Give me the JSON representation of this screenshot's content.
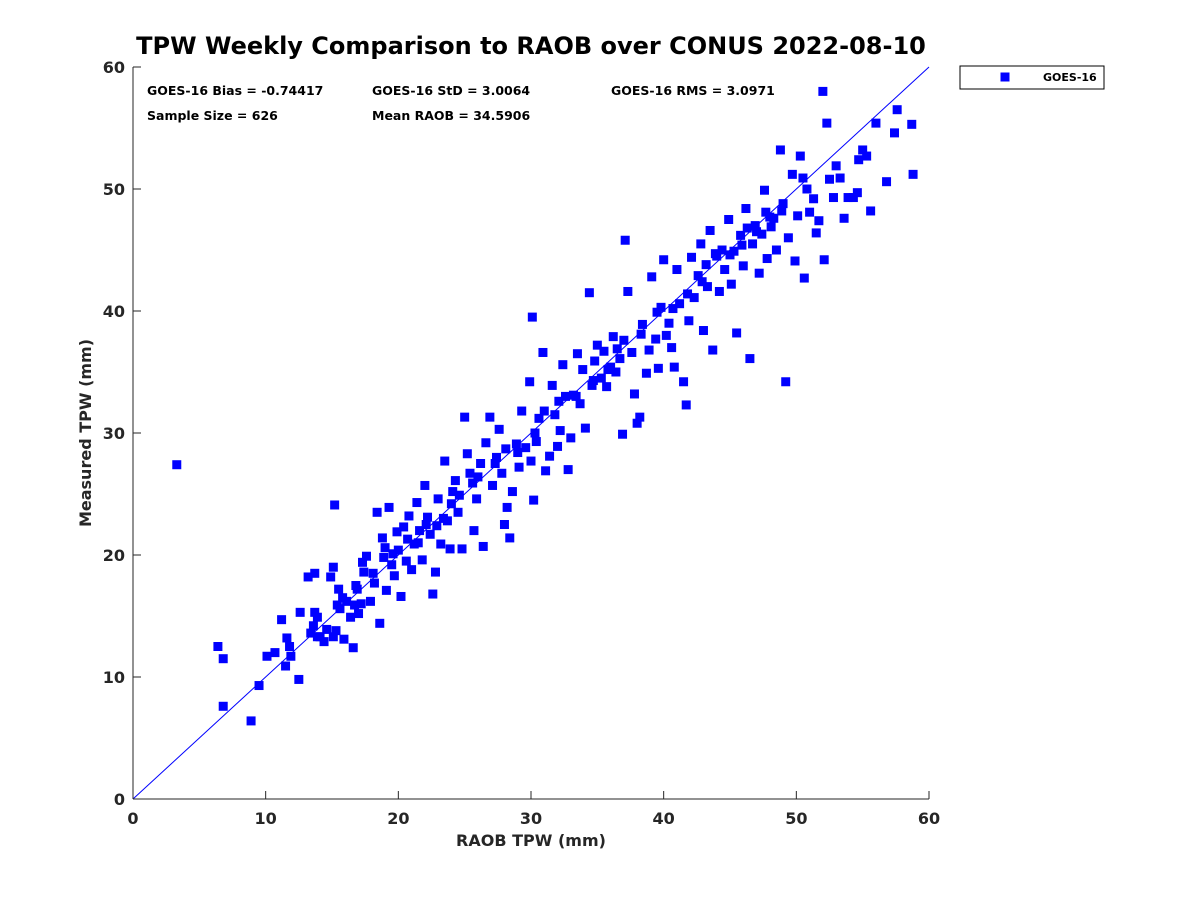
{
  "chart_data": {
    "type": "scatter",
    "title": "TPW Weekly Comparison to RAOB over CONUS 2022-08-10",
    "xlabel": "RAOB TPW (mm)",
    "ylabel": "Measured TPW (mm)",
    "xlim": [
      0,
      60
    ],
    "ylim": [
      0,
      60
    ],
    "xticks": [
      "0",
      "10",
      "20",
      "30",
      "40",
      "50",
      "60"
    ],
    "yticks": [
      "0",
      "10",
      "20",
      "30",
      "40",
      "50",
      "60"
    ],
    "grid": false,
    "legend_position": "outside top-right",
    "reference_line": {
      "name": "1:1 line",
      "from": [
        0,
        0
      ],
      "to": [
        60,
        60
      ],
      "color": "#0000ff"
    },
    "stats": {
      "bias": "GOES-16 Bias = -0.74417",
      "std": "GOES-16 StD = 3.0064",
      "rms": "GOES-16 RMS = 3.0971",
      "sample_size": "Sample Size = 626",
      "mean_raob": "Mean RAOB = 34.5906"
    },
    "series": [
      {
        "name": "GOES-16",
        "color": "#0000ff",
        "marker": "square",
        "points": [
          [
            3.3,
            27.4
          ],
          [
            6.4,
            12.5
          ],
          [
            6.8,
            11.5
          ],
          [
            6.8,
            7.6
          ],
          [
            8.9,
            6.4
          ],
          [
            9.5,
            9.3
          ],
          [
            10.1,
            11.7
          ],
          [
            10.7,
            12.0
          ],
          [
            11.2,
            14.7
          ],
          [
            11.5,
            10.9
          ],
          [
            11.8,
            12.5
          ],
          [
            11.6,
            13.2
          ],
          [
            11.9,
            11.7
          ],
          [
            12.5,
            9.8
          ],
          [
            12.6,
            15.3
          ],
          [
            13.2,
            18.2
          ],
          [
            13.4,
            13.6
          ],
          [
            13.6,
            14.2
          ],
          [
            13.7,
            15.3
          ],
          [
            13.7,
            18.5
          ],
          [
            13.9,
            14.9
          ],
          [
            14.1,
            13.3
          ],
          [
            14.4,
            12.9
          ],
          [
            14.6,
            13.9
          ],
          [
            14.9,
            18.2
          ],
          [
            15.1,
            13.3
          ],
          [
            15.1,
            19.0
          ],
          [
            15.2,
            24.1
          ],
          [
            15.3,
            13.8
          ],
          [
            15.5,
            17.2
          ],
          [
            15.6,
            15.6
          ],
          [
            15.8,
            16.5
          ],
          [
            15.9,
            13.1
          ],
          [
            16.1,
            16.2
          ],
          [
            16.4,
            14.9
          ],
          [
            16.6,
            12.4
          ],
          [
            16.7,
            15.9
          ],
          [
            16.8,
            17.5
          ],
          [
            17.0,
            15.2
          ],
          [
            17.2,
            16.0
          ],
          [
            17.4,
            18.6
          ],
          [
            17.6,
            19.9
          ],
          [
            17.9,
            16.2
          ],
          [
            18.2,
            17.7
          ],
          [
            18.4,
            23.5
          ],
          [
            18.6,
            14.4
          ],
          [
            18.8,
            21.4
          ],
          [
            19.0,
            20.6
          ],
          [
            19.1,
            17.1
          ],
          [
            19.3,
            23.9
          ],
          [
            19.5,
            19.2
          ],
          [
            19.7,
            18.3
          ],
          [
            19.9,
            21.9
          ],
          [
            20.0,
            20.4
          ],
          [
            20.2,
            16.6
          ],
          [
            20.4,
            22.3
          ],
          [
            20.6,
            19.5
          ],
          [
            20.8,
            23.2
          ],
          [
            21.0,
            18.8
          ],
          [
            21.2,
            20.9
          ],
          [
            21.4,
            24.3
          ],
          [
            21.6,
            22.0
          ],
          [
            21.8,
            19.6
          ],
          [
            22.0,
            25.7
          ],
          [
            22.2,
            23.1
          ],
          [
            22.4,
            21.7
          ],
          [
            22.6,
            16.8
          ],
          [
            22.8,
            18.6
          ],
          [
            23.0,
            24.6
          ],
          [
            23.2,
            20.9
          ],
          [
            23.5,
            27.7
          ],
          [
            23.7,
            22.8
          ],
          [
            23.9,
            20.5
          ],
          [
            24.1,
            25.2
          ],
          [
            24.3,
            26.1
          ],
          [
            24.5,
            23.5
          ],
          [
            24.8,
            20.5
          ],
          [
            25.0,
            31.3
          ],
          [
            25.2,
            28.3
          ],
          [
            25.4,
            26.7
          ],
          [
            25.7,
            22.0
          ],
          [
            25.9,
            24.6
          ],
          [
            26.2,
            27.5
          ],
          [
            26.4,
            20.7
          ],
          [
            26.6,
            29.2
          ],
          [
            26.9,
            31.3
          ],
          [
            27.1,
            25.7
          ],
          [
            27.4,
            28.0
          ],
          [
            27.6,
            30.3
          ],
          [
            27.8,
            26.7
          ],
          [
            28.0,
            22.5
          ],
          [
            28.2,
            23.9
          ],
          [
            28.4,
            21.4
          ],
          [
            28.6,
            25.2
          ],
          [
            28.9,
            29.1
          ],
          [
            29.1,
            27.2
          ],
          [
            29.3,
            31.8
          ],
          [
            29.6,
            28.8
          ],
          [
            29.9,
            34.2
          ],
          [
            30.0,
            27.7
          ],
          [
            30.1,
            39.5
          ],
          [
            30.2,
            24.5
          ],
          [
            30.4,
            29.3
          ],
          [
            30.6,
            31.2
          ],
          [
            30.9,
            36.6
          ],
          [
            31.1,
            26.9
          ],
          [
            31.4,
            28.1
          ],
          [
            31.6,
            33.9
          ],
          [
            31.8,
            31.5
          ],
          [
            32.0,
            28.9
          ],
          [
            32.2,
            30.2
          ],
          [
            32.4,
            35.6
          ],
          [
            32.6,
            33.0
          ],
          [
            32.8,
            27.0
          ],
          [
            33.0,
            29.6
          ],
          [
            33.2,
            33.1
          ],
          [
            33.5,
            36.5
          ],
          [
            33.7,
            32.4
          ],
          [
            33.9,
            35.2
          ],
          [
            34.1,
            30.4
          ],
          [
            34.4,
            41.5
          ],
          [
            34.6,
            33.9
          ],
          [
            34.8,
            35.9
          ],
          [
            35.0,
            37.2
          ],
          [
            35.3,
            34.5
          ],
          [
            35.5,
            36.7
          ],
          [
            35.7,
            33.8
          ],
          [
            36.0,
            35.4
          ],
          [
            36.2,
            37.9
          ],
          [
            36.4,
            35.0
          ],
          [
            36.7,
            36.1
          ],
          [
            36.9,
            29.9
          ],
          [
            37.1,
            45.8
          ],
          [
            37.3,
            41.6
          ],
          [
            37.6,
            36.6
          ],
          [
            37.8,
            33.2
          ],
          [
            38.0,
            30.8
          ],
          [
            38.2,
            31.3
          ],
          [
            38.4,
            38.9
          ],
          [
            38.7,
            34.9
          ],
          [
            38.9,
            36.8
          ],
          [
            39.1,
            42.8
          ],
          [
            39.4,
            37.7
          ],
          [
            39.6,
            35.3
          ],
          [
            39.8,
            40.3
          ],
          [
            40.0,
            44.2
          ],
          [
            40.2,
            38.0
          ],
          [
            40.4,
            39.0
          ],
          [
            40.6,
            37.0
          ],
          [
            40.8,
            35.4
          ],
          [
            41.0,
            43.4
          ],
          [
            41.2,
            40.6
          ],
          [
            41.5,
            34.2
          ],
          [
            41.7,
            32.3
          ],
          [
            41.9,
            39.2
          ],
          [
            42.1,
            44.4
          ],
          [
            42.3,
            41.1
          ],
          [
            42.6,
            42.9
          ],
          [
            42.8,
            45.5
          ],
          [
            43.0,
            38.4
          ],
          [
            43.3,
            42.0
          ],
          [
            43.5,
            46.6
          ],
          [
            43.7,
            36.8
          ],
          [
            43.9,
            44.7
          ],
          [
            44.2,
            41.6
          ],
          [
            44.4,
            45.0
          ],
          [
            44.6,
            43.4
          ],
          [
            44.9,
            47.5
          ],
          [
            45.1,
            42.2
          ],
          [
            45.3,
            44.9
          ],
          [
            45.5,
            38.2
          ],
          [
            45.8,
            46.2
          ],
          [
            46.0,
            43.7
          ],
          [
            46.2,
            48.4
          ],
          [
            46.5,
            36.1
          ],
          [
            46.7,
            45.5
          ],
          [
            46.9,
            47.0
          ],
          [
            47.2,
            43.1
          ],
          [
            47.4,
            46.3
          ],
          [
            47.6,
            49.9
          ],
          [
            47.8,
            44.3
          ],
          [
            48.1,
            46.9
          ],
          [
            48.3,
            47.6
          ],
          [
            48.5,
            45.0
          ],
          [
            48.8,
            53.2
          ],
          [
            49.0,
            48.8
          ],
          [
            49.2,
            34.2
          ],
          [
            49.4,
            46.0
          ],
          [
            49.7,
            51.2
          ],
          [
            49.9,
            44.1
          ],
          [
            50.1,
            47.8
          ],
          [
            50.3,
            52.7
          ],
          [
            50.6,
            42.7
          ],
          [
            50.8,
            50.0
          ],
          [
            51.0,
            48.1
          ],
          [
            51.3,
            49.2
          ],
          [
            51.5,
            46.4
          ],
          [
            51.7,
            47.4
          ],
          [
            52.0,
            58.0
          ],
          [
            52.1,
            44.2
          ],
          [
            52.3,
            55.4
          ],
          [
            52.5,
            50.8
          ],
          [
            52.8,
            49.3
          ],
          [
            53.0,
            51.9
          ],
          [
            53.3,
            50.9
          ],
          [
            53.6,
            47.6
          ],
          [
            53.9,
            49.3
          ],
          [
            54.3,
            49.3
          ],
          [
            54.6,
            49.7
          ],
          [
            54.7,
            52.4
          ],
          [
            55.0,
            53.2
          ],
          [
            55.3,
            52.7
          ],
          [
            55.6,
            48.2
          ],
          [
            56.0,
            55.4
          ],
          [
            56.8,
            50.6
          ],
          [
            57.4,
            54.6
          ],
          [
            57.6,
            56.5
          ],
          [
            58.7,
            55.3
          ],
          [
            58.8,
            51.2
          ],
          [
            15.4,
            15.9
          ],
          [
            17.3,
            19.4
          ],
          [
            18.9,
            19.8
          ],
          [
            20.7,
            21.3
          ],
          [
            22.1,
            22.5
          ],
          [
            24.0,
            24.2
          ],
          [
            25.6,
            25.9
          ],
          [
            27.3,
            27.5
          ],
          [
            29.0,
            28.4
          ],
          [
            31.0,
            31.8
          ],
          [
            33.4,
            33.0
          ],
          [
            36.5,
            36.9
          ],
          [
            38.3,
            38.1
          ],
          [
            40.7,
            40.2
          ],
          [
            43.2,
            43.8
          ],
          [
            45.0,
            44.6
          ],
          [
            47.0,
            46.5
          ],
          [
            48.9,
            48.2
          ],
          [
            50.5,
            50.9
          ],
          [
            19.6,
            20.1
          ],
          [
            21.5,
            21.0
          ],
          [
            23.4,
            23.0
          ],
          [
            26.0,
            26.4
          ],
          [
            28.1,
            28.7
          ],
          [
            30.3,
            30.0
          ],
          [
            32.1,
            32.6
          ],
          [
            34.7,
            34.3
          ],
          [
            37.0,
            37.6
          ],
          [
            39.5,
            39.9
          ],
          [
            41.8,
            41.4
          ],
          [
            44.0,
            44.5
          ],
          [
            46.3,
            46.8
          ],
          [
            48.0,
            47.7
          ],
          [
            13.9,
            13.3
          ],
          [
            16.9,
            17.2
          ],
          [
            18.1,
            18.5
          ],
          [
            22.9,
            22.4
          ],
          [
            24.6,
            24.9
          ],
          [
            35.8,
            35.2
          ],
          [
            42.9,
            42.4
          ],
          [
            45.9,
            45.4
          ],
          [
            47.7,
            48.1
          ]
        ]
      }
    ]
  },
  "legend": {
    "label": "GOES-16"
  }
}
